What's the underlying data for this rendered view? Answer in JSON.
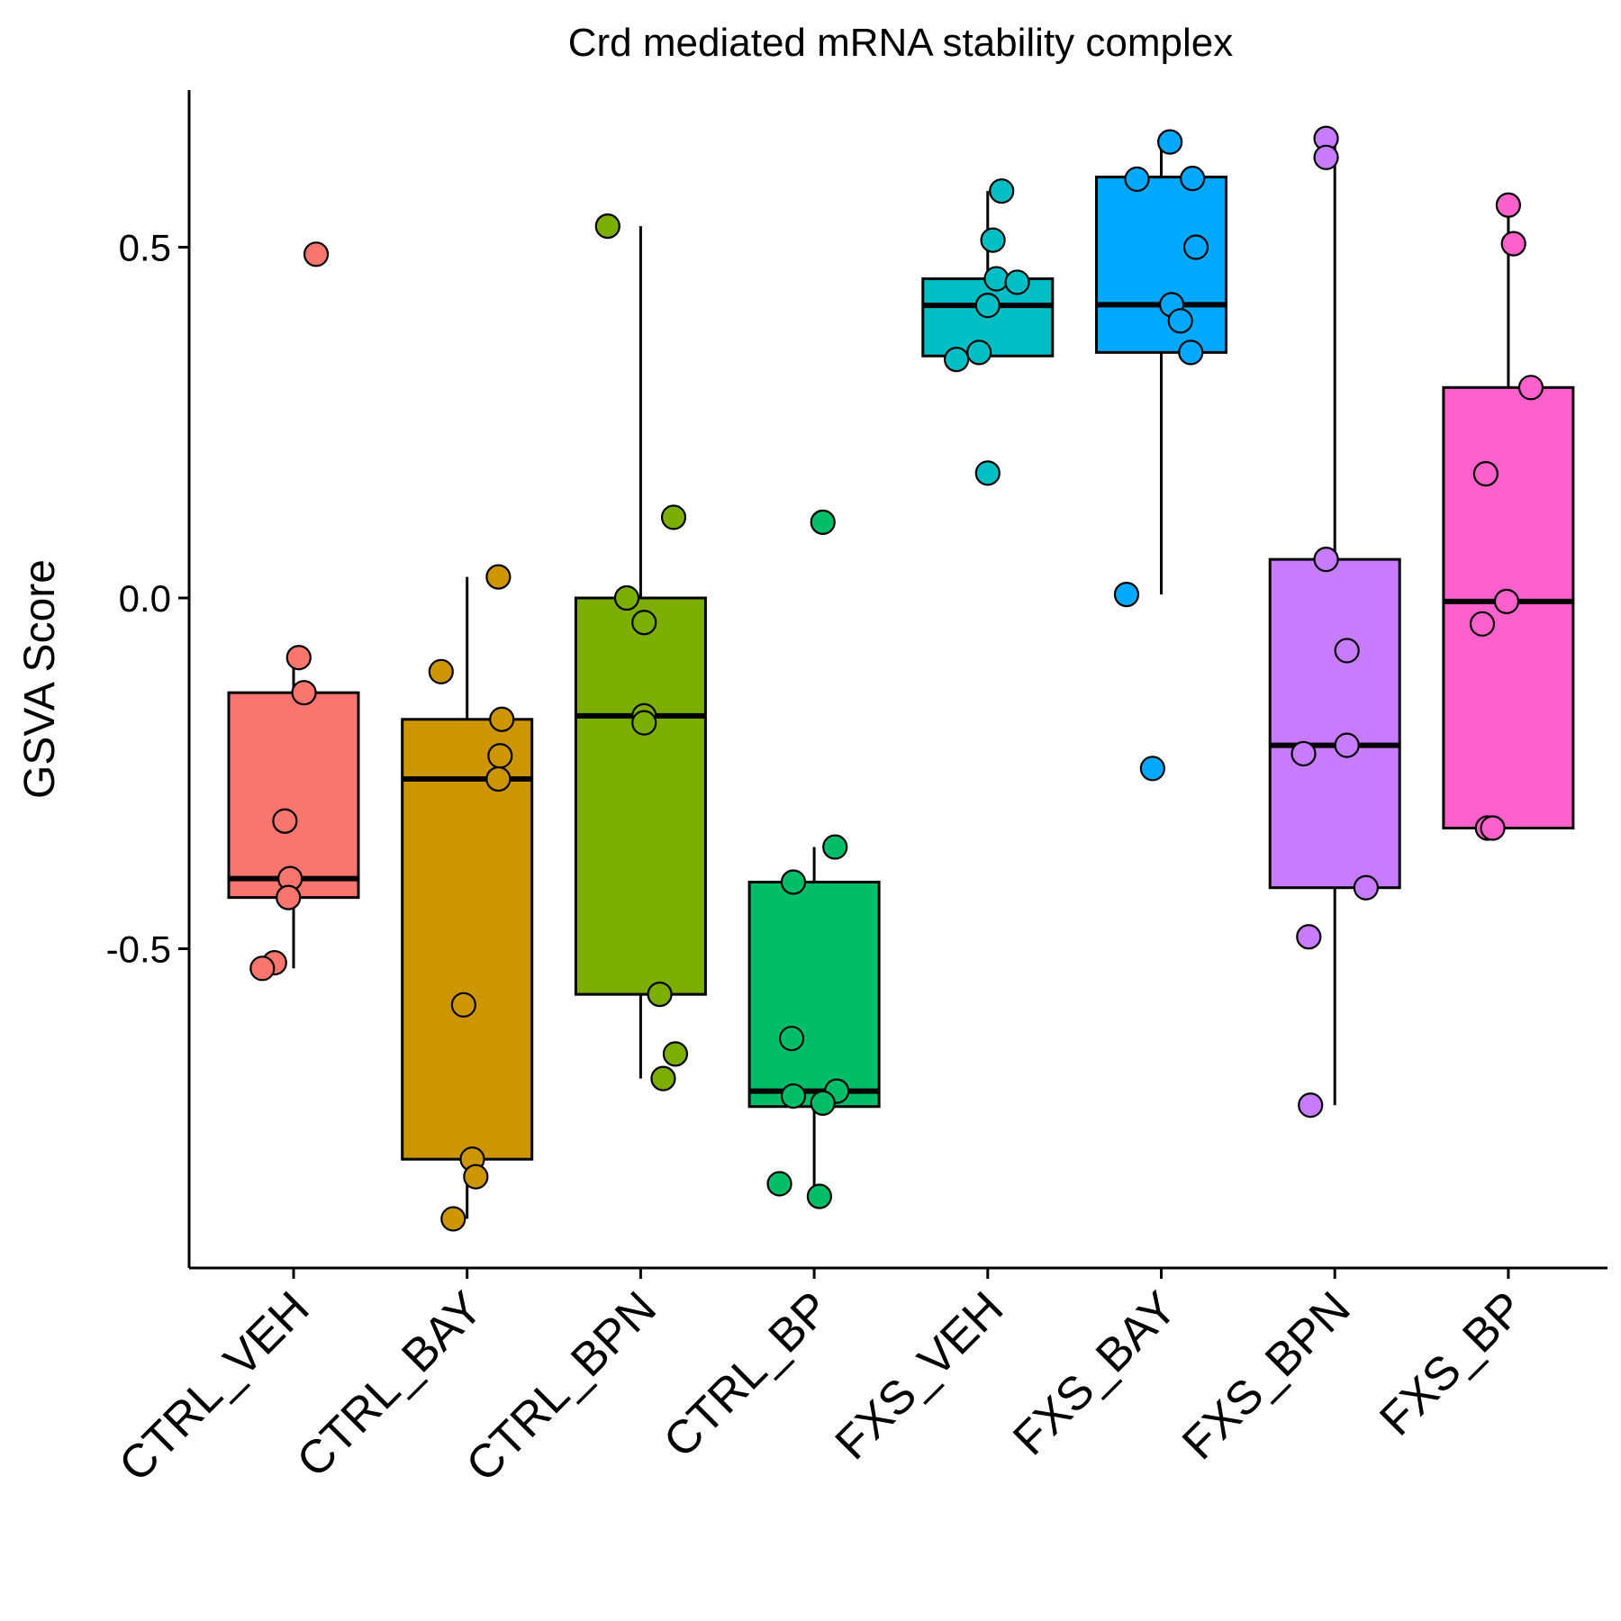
{
  "chart_data": {
    "type": "box",
    "title": "Crd mediated mRNA stability complex",
    "xlabel": "",
    "ylabel": "GSVA Score",
    "ylim": [
      -0.93,
      0.72
    ],
    "yticks": [
      -0.5,
      0.0,
      0.5
    ],
    "ytick_labels": [
      "-0.5",
      "0.0",
      "0.5"
    ],
    "grid": false,
    "legend": "none",
    "categories": [
      "CTRL_VEH",
      "CTRL_BAY",
      "CTRL_BPN",
      "CTRL_BP",
      "FXS_VEH",
      "FXS_BAY",
      "FXS_BPN",
      "FXS_BP"
    ],
    "colors": [
      "#F8766D",
      "#CD9600",
      "#7CAE00",
      "#00BE67",
      "#00BFC4",
      "#00A9FF",
      "#C77CFF",
      "#FF61CC"
    ],
    "boxes": [
      {
        "q1": -0.427,
        "median": -0.4,
        "q3": -0.135,
        "whisker_low": -0.528,
        "whisker_high": -0.085
      },
      {
        "q1": -0.8,
        "median": -0.258,
        "q3": -0.173,
        "whisker_low": -0.885,
        "whisker_high": 0.03
      },
      {
        "q1": -0.565,
        "median": -0.168,
        "q3": 0.0,
        "whisker_low": -0.685,
        "whisker_high": 0.53
      },
      {
        "q1": -0.725,
        "median": -0.703,
        "q3": -0.405,
        "whisker_low": -0.85,
        "whisker_high": -0.355
      },
      {
        "q1": 0.345,
        "median": 0.417,
        "q3": 0.455,
        "whisker_low": 0.345,
        "whisker_high": 0.58
      },
      {
        "q1": 0.35,
        "median": 0.418,
        "q3": 0.6,
        "whisker_low": 0.005,
        "whisker_high": 0.65
      },
      {
        "q1": -0.413,
        "median": -0.21,
        "q3": 0.055,
        "whisker_low": -0.723,
        "whisker_high": 0.65
      },
      {
        "q1": -0.328,
        "median": -0.005,
        "q3": 0.3,
        "whisker_low": -0.328,
        "whisker_high": 0.56
      }
    ],
    "points": [
      {
        "group": 0,
        "values": [
          0.49,
          -0.085,
          -0.135,
          -0.318,
          -0.4,
          -0.427,
          -0.52,
          -0.528
        ],
        "jitter": [
          0.13,
          0.03,
          0.06,
          -0.05,
          -0.02,
          -0.03,
          -0.11,
          -0.18
        ]
      },
      {
        "group": 1,
        "values": [
          0.03,
          -0.105,
          -0.173,
          -0.225,
          -0.258,
          -0.58,
          -0.8,
          -0.825,
          -0.885
        ],
        "jitter": [
          0.18,
          -0.15,
          0.2,
          0.19,
          0.18,
          -0.02,
          0.03,
          0.05,
          -0.08
        ]
      },
      {
        "group": 2,
        "values": [
          0.53,
          0.115,
          0.0,
          -0.035,
          -0.168,
          -0.178,
          -0.565,
          -0.65,
          -0.685
        ],
        "jitter": [
          -0.19,
          0.19,
          -0.08,
          0.02,
          0.02,
          0.02,
          0.11,
          0.2,
          0.13
        ]
      },
      {
        "group": 3,
        "values": [
          0.108,
          -0.355,
          -0.405,
          -0.628,
          -0.703,
          -0.71,
          -0.72,
          -0.835,
          -0.853
        ],
        "jitter": [
          0.05,
          0.12,
          -0.12,
          -0.13,
          0.13,
          -0.12,
          0.05,
          -0.2,
          0.03
        ]
      },
      {
        "group": 4,
        "values": [
          0.58,
          0.51,
          0.455,
          0.45,
          0.417,
          0.35,
          0.34,
          0.178
        ],
        "jitter": [
          0.08,
          0.03,
          0.05,
          0.17,
          0.0,
          -0.05,
          -0.18,
          0.0
        ]
      },
      {
        "group": 5,
        "values": [
          0.65,
          0.597,
          0.598,
          0.5,
          0.418,
          0.395,
          0.35,
          0.005,
          -0.243
        ],
        "jitter": [
          0.05,
          -0.14,
          0.18,
          0.2,
          0.06,
          0.11,
          0.17,
          -0.2,
          -0.05
        ]
      },
      {
        "group": 6,
        "values": [
          0.655,
          0.628,
          0.055,
          -0.075,
          -0.21,
          -0.222,
          -0.413,
          -0.483,
          -0.723
        ],
        "jitter": [
          -0.05,
          -0.05,
          -0.05,
          0.07,
          0.07,
          -0.18,
          0.18,
          -0.15,
          -0.14
        ]
      },
      {
        "group": 7,
        "values": [
          0.56,
          0.505,
          0.3,
          0.177,
          -0.005,
          -0.037,
          -0.328,
          -0.328
        ],
        "jitter": [
          0.0,
          0.03,
          0.13,
          -0.13,
          -0.01,
          -0.15,
          -0.12,
          -0.09
        ]
      }
    ]
  }
}
